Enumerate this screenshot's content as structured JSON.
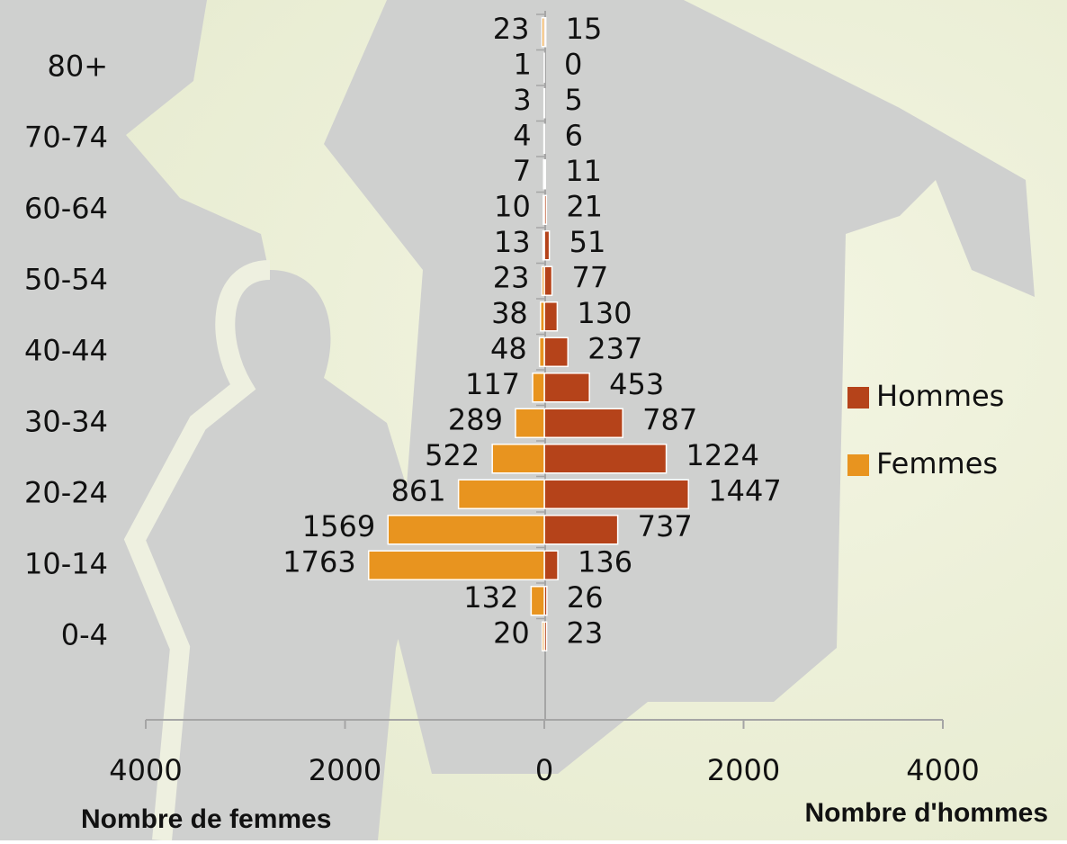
{
  "chart_data": {
    "type": "pyramid",
    "categories": [
      null,
      "80+",
      null,
      "70-74",
      null,
      "60-64",
      null,
      "50-54",
      null,
      "40-44",
      null,
      "30-34",
      null,
      "20-24",
      null,
      "10-14",
      null,
      "0-4"
    ],
    "series": [
      {
        "name": "Hommes",
        "color": "#b5431a",
        "side": "right",
        "values": [
          15,
          0,
          5,
          6,
          11,
          21,
          51,
          77,
          130,
          237,
          453,
          787,
          1224,
          1447,
          737,
          136,
          26,
          23
        ]
      },
      {
        "name": "Femmes",
        "color": "#e8941f",
        "side": "left",
        "values": [
          23,
          1,
          3,
          4,
          7,
          10,
          13,
          23,
          38,
          48,
          117,
          289,
          522,
          861,
          1569,
          1763,
          132,
          20
        ]
      }
    ],
    "xlim": [
      -4000,
      4000
    ],
    "xticks": [
      {
        "value": -4000,
        "label": "4000"
      },
      {
        "value": -2000,
        "label": "2000"
      },
      0,
      2000,
      4000
    ],
    "left_axis_label": "Nombre de femmes",
    "right_axis_label": "Nombre d'hommes",
    "legend": "right"
  }
}
